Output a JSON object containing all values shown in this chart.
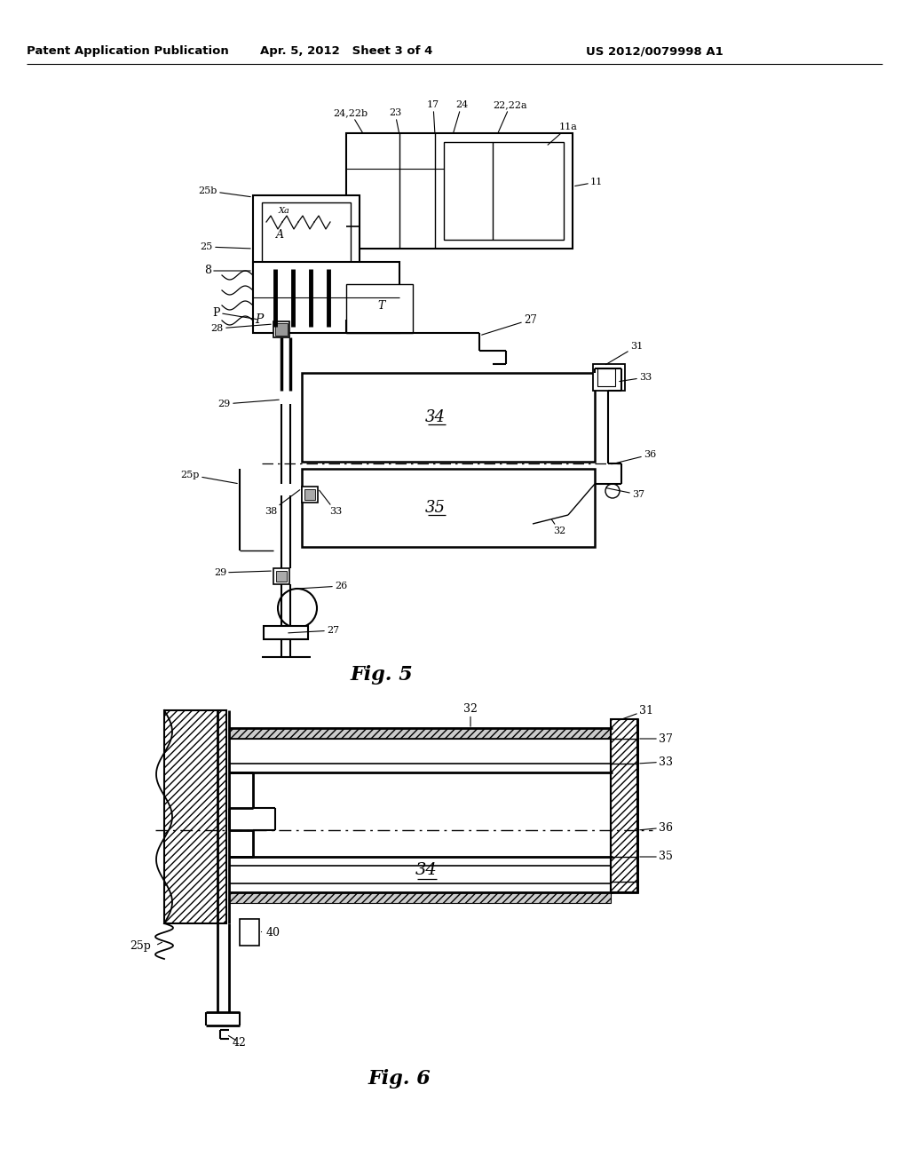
{
  "header_left": "Patent Application Publication",
  "header_middle": "Apr. 5, 2012   Sheet 3 of 4",
  "header_right": "US 2012/0079998 A1",
  "fig5_label": "Fig. 5",
  "fig6_label": "Fig. 6",
  "bg": "#ffffff",
  "lc": "#000000"
}
